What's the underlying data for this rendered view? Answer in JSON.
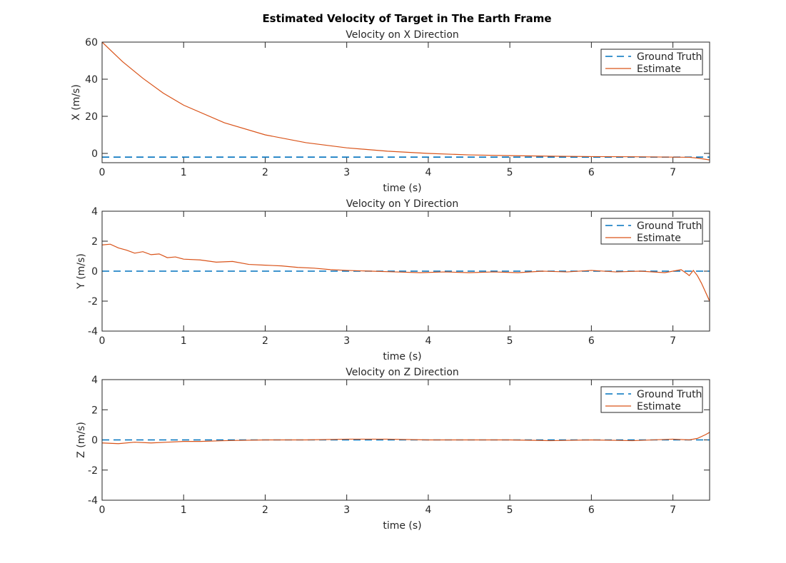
{
  "figure_title": "Estimated Velocity of Target in The Earth Frame",
  "colors": {
    "ground_truth": "#0072BD",
    "estimate": "#D95319",
    "axis": "#262626",
    "background": "#FFFFFF"
  },
  "chart_data": [
    {
      "type": "line",
      "title": "Velocity on X Direction",
      "xlabel": "time (s)",
      "ylabel": "X (m/s)",
      "xlim": [
        0,
        7.45
      ],
      "ylim": [
        -5,
        60
      ],
      "xticks": [
        0,
        1,
        2,
        3,
        4,
        5,
        6,
        7
      ],
      "yticks": [
        0,
        20,
        40,
        60
      ],
      "grid": false,
      "legend_position": "top-right",
      "series": [
        {
          "name": "Ground Truth",
          "style": "dashed",
          "x": [
            0,
            7.45
          ],
          "y": [
            -2,
            -2
          ]
        },
        {
          "name": "Estimate",
          "style": "solid",
          "x": [
            0,
            0.25,
            0.5,
            0.75,
            1.0,
            1.5,
            2.0,
            2.5,
            3.0,
            3.5,
            4.0,
            4.5,
            5.0,
            5.5,
            6.0,
            6.5,
            7.0,
            7.2,
            7.3,
            7.45
          ],
          "y": [
            60,
            49.5,
            40.5,
            32.5,
            26,
            16.5,
            10,
            5.8,
            3,
            1.2,
            0,
            -0.8,
            -1.2,
            -1.5,
            -1.7,
            -1.8,
            -2,
            -2.1,
            -2.5,
            -3.5
          ]
        }
      ]
    },
    {
      "type": "line",
      "title": "Velocity on Y Direction",
      "xlabel": "time (s)",
      "ylabel": "Y (m/s)",
      "xlim": [
        0,
        7.45
      ],
      "ylim": [
        -4,
        4
      ],
      "xticks": [
        0,
        1,
        2,
        3,
        4,
        5,
        6,
        7
      ],
      "yticks": [
        -4,
        -2,
        0,
        2,
        4
      ],
      "grid": false,
      "legend_position": "top-right",
      "series": [
        {
          "name": "Ground Truth",
          "style": "dashed",
          "x": [
            0,
            7.45
          ],
          "y": [
            0,
            0
          ]
        },
        {
          "name": "Estimate",
          "style": "solid",
          "x": [
            0,
            0.1,
            0.2,
            0.3,
            0.4,
            0.5,
            0.6,
            0.7,
            0.8,
            0.9,
            1.0,
            1.2,
            1.4,
            1.6,
            1.8,
            2.0,
            2.2,
            2.4,
            2.6,
            2.8,
            3.0,
            3.3,
            3.6,
            3.9,
            4.2,
            4.5,
            4.8,
            5.1,
            5.4,
            5.7,
            6.0,
            6.3,
            6.6,
            6.9,
            7.1,
            7.18,
            7.2,
            7.25,
            7.3,
            7.35,
            7.4,
            7.45
          ],
          "y": [
            1.75,
            1.8,
            1.55,
            1.4,
            1.2,
            1.3,
            1.1,
            1.15,
            0.9,
            0.95,
            0.8,
            0.75,
            0.6,
            0.65,
            0.45,
            0.4,
            0.35,
            0.25,
            0.2,
            0.1,
            0.05,
            0.0,
            -0.05,
            -0.1,
            -0.05,
            -0.1,
            -0.05,
            -0.1,
            0.0,
            -0.05,
            0.05,
            -0.05,
            0.0,
            -0.1,
            0.1,
            -0.2,
            -0.3,
            0.05,
            -0.3,
            -0.8,
            -1.4,
            -2.0
          ]
        }
      ]
    },
    {
      "type": "line",
      "title": "Velocity on Z Direction",
      "xlabel": "time (s)",
      "ylabel": "Z (m/s)",
      "xlim": [
        0,
        7.45
      ],
      "ylim": [
        -4,
        4
      ],
      "xticks": [
        0,
        1,
        2,
        3,
        4,
        5,
        6,
        7
      ],
      "yticks": [
        -4,
        -2,
        0,
        2,
        4
      ],
      "grid": false,
      "legend_position": "top-right",
      "series": [
        {
          "name": "Ground Truth",
          "style": "dashed",
          "x": [
            0,
            7.45
          ],
          "y": [
            0,
            0
          ]
        },
        {
          "name": "Estimate",
          "style": "solid",
          "x": [
            0,
            0.2,
            0.4,
            0.6,
            0.8,
            1.0,
            1.2,
            1.5,
            2.0,
            2.5,
            3.0,
            3.5,
            4.0,
            4.5,
            5.0,
            5.5,
            6.0,
            6.5,
            7.0,
            7.2,
            7.3,
            7.4,
            7.45
          ],
          "y": [
            -0.2,
            -0.25,
            -0.15,
            -0.2,
            -0.15,
            -0.1,
            -0.1,
            -0.05,
            0.0,
            0.0,
            0.05,
            0.05,
            0.0,
            0.0,
            0.0,
            -0.05,
            0.0,
            -0.05,
            0.05,
            0.0,
            0.1,
            0.35,
            0.5
          ]
        }
      ]
    }
  ]
}
